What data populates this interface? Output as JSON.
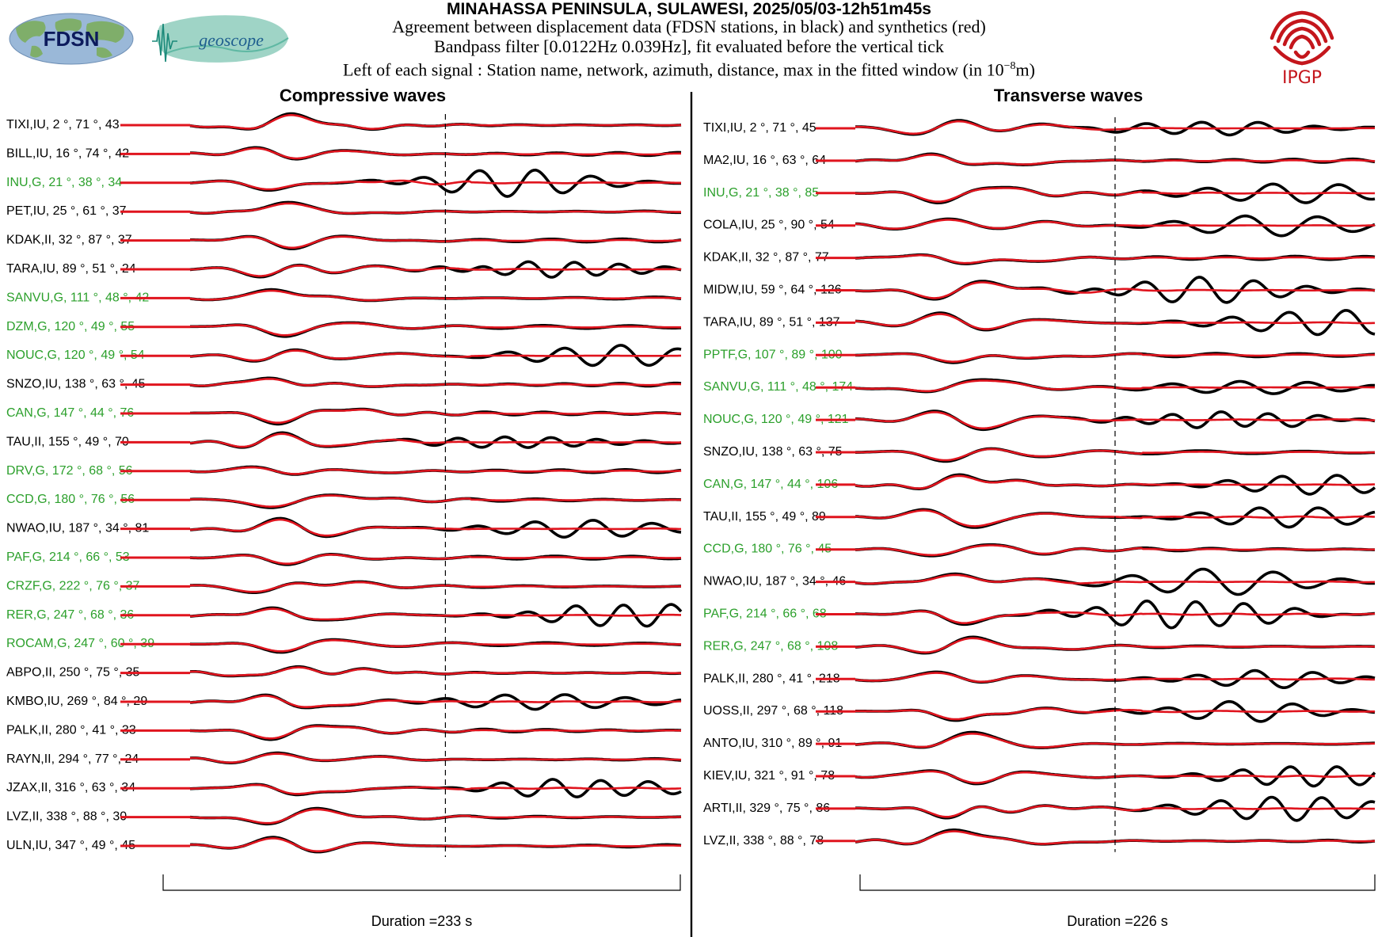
{
  "header": {
    "title": "MINAHASSA PENINSULA, SULAWESI, 2025/05/03-12h51m45s",
    "line1": "Agreement between displacement data (FDSN stations, in black) and synthetics (red)",
    "line2": "Bandpass filter [0.0122Hz 0.039Hz], fit evaluated before the vertical tick",
    "line3_prefix": "Left of each signal : Station name, network, azimuth, distance, max in the fitted window (in 10",
    "line3_exp": "−8",
    "line3_suffix": "m)"
  },
  "logos": {
    "fdsn": "FDSN",
    "geoscope": "geoscope",
    "ipgp": "IPGP"
  },
  "colors": {
    "data": "#000000",
    "synthetic": "#e0141e",
    "geoscope_station": "#2ca02c",
    "other_station": "#000000",
    "ipgp": "#c4161c"
  },
  "chart_data": [
    {
      "type": "line",
      "title": "Compressive waves",
      "duration_label": "Duration =233 s",
      "series_legend": [
        "data (black)",
        "synthetics (red)"
      ],
      "stations": [
        {
          "label": "TIXI,IU, 2 °, 71 °, 43",
          "net": "IU"
        },
        {
          "label": "BILL,IU, 16 °, 74 °, 42",
          "net": "IU"
        },
        {
          "label": "INU,G, 21 °, 38 °, 34",
          "net": "G"
        },
        {
          "label": "PET,IU, 25 °, 61 °, 37",
          "net": "IU"
        },
        {
          "label": "KDAK,II, 32 °, 87 °, 37",
          "net": "II"
        },
        {
          "label": "TARA,IU, 89 °, 51 °, 24",
          "net": "IU"
        },
        {
          "label": "SANVU,G, 111 °, 48 °, 42",
          "net": "G"
        },
        {
          "label": "DZM,G, 120 °, 49 °, 55",
          "net": "G"
        },
        {
          "label": "NOUC,G, 120 °, 49 °, 54",
          "net": "G"
        },
        {
          "label": "SNZO,IU, 138 °, 63 °, 45",
          "net": "IU"
        },
        {
          "label": "CAN,G, 147 °, 44 °, 76",
          "net": "G"
        },
        {
          "label": "TAU,II, 155 °, 49 °, 70",
          "net": "II"
        },
        {
          "label": "DRV,G, 172 °, 68 °, 56",
          "net": "G"
        },
        {
          "label": "CCD,G, 180 °, 76 °, 56",
          "net": "G"
        },
        {
          "label": "NWAO,IU, 187 °, 34 °, 81",
          "net": "IU"
        },
        {
          "label": "PAF,G, 214 °, 66 °, 53",
          "net": "G"
        },
        {
          "label": "CRZF,G, 222 °, 76 °, 37",
          "net": "G"
        },
        {
          "label": "RER,G, 247 °, 68 °, 36",
          "net": "G"
        },
        {
          "label": "ROCAM,G, 247 °, 60 °, 39",
          "net": "G"
        },
        {
          "label": "ABPO,II, 250 °, 75 °, 35",
          "net": "II"
        },
        {
          "label": "KMBO,IU, 269 °, 84 °, 29",
          "net": "IU"
        },
        {
          "label": "PALK,II, 280 °, 41 °, 33",
          "net": "II"
        },
        {
          "label": "RAYN,II, 294 °, 77 °, 24",
          "net": "II"
        },
        {
          "label": "JZAX,II, 316 °, 63 °, 34",
          "net": "II"
        },
        {
          "label": "LVZ,II, 338 °, 88 °, 30",
          "net": "II"
        },
        {
          "label": "ULN,IU, 347 °, 49 °, 45",
          "net": "IU"
        }
      ]
    },
    {
      "type": "line",
      "title": "Transverse waves",
      "duration_label": "Duration =226 s",
      "series_legend": [
        "data (black)",
        "synthetics (red)"
      ],
      "stations": [
        {
          "label": "TIXI,IU, 2 °, 71 °, 45",
          "net": "IU"
        },
        {
          "label": "MA2,IU, 16 °, 63 °, 64",
          "net": "IU"
        },
        {
          "label": "INU,G, 21 °, 38 °, 85",
          "net": "G"
        },
        {
          "label": "COLA,IU, 25 °, 90 °, 54",
          "net": "IU"
        },
        {
          "label": "KDAK,II, 32 °, 87 °, 77",
          "net": "II"
        },
        {
          "label": "MIDW,IU, 59 °, 64 °, 126",
          "net": "IU"
        },
        {
          "label": "TARA,IU, 89 °, 51 °, 137",
          "net": "IU"
        },
        {
          "label": "PPTF,G, 107 °, 89 °, 100",
          "net": "G"
        },
        {
          "label": "SANVU,G, 111 °, 48 °, 174",
          "net": "G"
        },
        {
          "label": "NOUC,G, 120 °, 49 °, 121",
          "net": "G"
        },
        {
          "label": "SNZO,IU, 138 °, 63 °, 75",
          "net": "IU"
        },
        {
          "label": "CAN,G, 147 °, 44 °, 106",
          "net": "G"
        },
        {
          "label": "TAU,II, 155 °, 49 °, 89",
          "net": "II"
        },
        {
          "label": "CCD,G, 180 °, 76 °, 45",
          "net": "G"
        },
        {
          "label": "NWAO,IU, 187 °, 34 °, 46",
          "net": "IU"
        },
        {
          "label": "PAF,G, 214 °, 66 °, 68",
          "net": "G"
        },
        {
          "label": "RER,G, 247 °, 68 °, 108",
          "net": "G"
        },
        {
          "label": "PALK,II, 280 °, 41 °, 218",
          "net": "II"
        },
        {
          "label": "UOSS,II, 297 °, 68 °, 118",
          "net": "II"
        },
        {
          "label": "ANTO,IU, 310 °, 89 °, 91",
          "net": "IU"
        },
        {
          "label": "KIEV,IU, 321 °, 91 °, 78",
          "net": "IU"
        },
        {
          "label": "ARTI,II, 329 °, 75 °, 86",
          "net": "II"
        },
        {
          "label": "LVZ,II, 338 °, 88 °, 78",
          "net": "II"
        }
      ]
    }
  ]
}
